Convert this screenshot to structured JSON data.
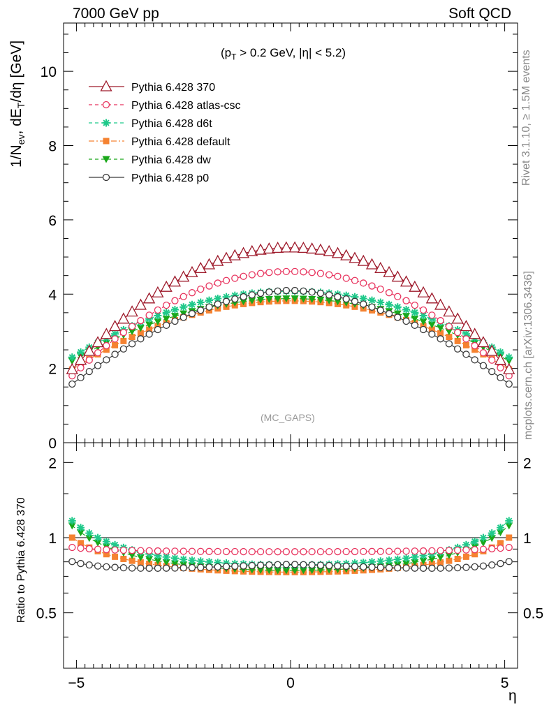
{
  "header": {
    "left": "7000 GeV pp",
    "right": "Soft QCD"
  },
  "side_labels": {
    "rivet": "Rivet 3.1.10, ≥ 1.5M events",
    "mcplots": "mcplots.cern.ch [arXiv:1306.3436]"
  },
  "chart_data": [
    {
      "type": "line",
      "title": "(p_T > 0.2 GeV, |η| < 5.2)",
      "watermark": "(MC_GAPS)",
      "ylabel": "1/N_ev, dE_T/dη [GeV]",
      "xlim": [
        -5.3,
        5.3
      ],
      "ylim": [
        0,
        11.3
      ],
      "y_ticks": [
        "0",
        "2",
        "4",
        "6",
        "8",
        "10"
      ],
      "x_range_eta": [
        -5.1,
        5.1
      ],
      "x_step": 0.2,
      "series": [
        {
          "name": "Pythia 6.428 370",
          "color": "#9e1a2b",
          "marker": "triangle-open",
          "linestyle": "solid",
          "center": 5.25,
          "edge": 1.97,
          "power": 2.0
        },
        {
          "name": "Pythia 6.428 atlas-csc",
          "color": "#e8355f",
          "marker": "circle-open",
          "linestyle": "dashed",
          "center": 4.61,
          "edge": 1.8,
          "power": 2.0
        },
        {
          "name": "Pythia 6.428 d6t",
          "color": "#1fc98a",
          "marker": "star",
          "linestyle": "dashed",
          "center": 4.08,
          "edge": 2.3,
          "power": 2.0
        },
        {
          "name": "Pythia 6.428 default",
          "color": "#f58231",
          "marker": "square",
          "linestyle": "dashdot",
          "center": 3.82,
          "edge": 1.97,
          "power": 2.0
        },
        {
          "name": "Pythia 6.428 dw",
          "color": "#1aa81a",
          "marker": "triangle-down",
          "linestyle": "dashed",
          "center": 3.88,
          "edge": 2.2,
          "power": 2.0
        },
        {
          "name": "Pythia 6.428 p0",
          "color": "#3a3a3a",
          "marker": "circle-open",
          "linestyle": "solid",
          "center": 4.1,
          "edge": 1.58,
          "power": 1.75
        }
      ]
    },
    {
      "type": "line",
      "ylabel": "Ratio to Pythia 6.428 370",
      "xlabel": "η",
      "xlim": [
        -5.3,
        5.3
      ],
      "ylim": [
        0.3,
        2.4
      ],
      "y_scale": "log",
      "x_ticks": [
        "−5",
        "0",
        "5"
      ],
      "y_ticks": [
        "0.5",
        "1",
        "2"
      ],
      "reference_line": 1
    }
  ],
  "colors": {
    "axis": "#000000",
    "side_text": "#888888",
    "watermark": "#999999"
  }
}
